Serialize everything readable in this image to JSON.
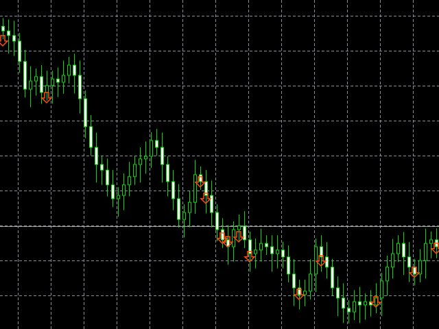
{
  "chart_data": {
    "type": "candlestick",
    "title": "",
    "xlabel": "",
    "ylabel": "",
    "ylim": [
      0,
      100
    ],
    "grid": true,
    "colors": {
      "background": "#000000",
      "grid": "#8a8f99",
      "wick": "#00e000",
      "bull_body": "#000000",
      "bear_body": "#ffffff",
      "signal_arrow": "#ff4a10",
      "price_line": "#a0a0a0"
    },
    "first_open": 92,
    "close": [
      90.6,
      89.2,
      87.5,
      81.3,
      72.9,
      75.4,
      76.7,
      71.9,
      74.0,
      76.0,
      75.0,
      77.1,
      80.2,
      77.1,
      70.0,
      61.5,
      55.2,
      50.0,
      48.3,
      43.8,
      39.6,
      40.6,
      43.8,
      46.3,
      50.0,
      51.7,
      52.5,
      57.3,
      55.2,
      50.0,
      44.8,
      39.6,
      33.3,
      35.4,
      38.5,
      46.9,
      44.8,
      40.6,
      35.4,
      30.2,
      27.1,
      25.0,
      30.2,
      31.3,
      27.1,
      22.9,
      24.0,
      26.0,
      25.0,
      22.9,
      24.0,
      21.9,
      16.7,
      12.5,
      10.4,
      11.5,
      16.7,
      25.0,
      21.9,
      18.8,
      12.5,
      9.4,
      6.3,
      5.2,
      8.3,
      7.3,
      8.3,
      7.3,
      9.4,
      14.6,
      18.8,
      22.9,
      26.0,
      21.9,
      18.8,
      16.7,
      20.8,
      26.0,
      27.1,
      25.0
    ],
    "sell_signals": [
      {
        "index": 0,
        "value": 87.1
      },
      {
        "index": 8,
        "value": 69.8
      },
      {
        "index": 36,
        "value": 44.2
      },
      {
        "index": 37,
        "value": 39.2
      },
      {
        "index": 40,
        "value": 27.1
      },
      {
        "index": 41,
        "value": 26.0
      },
      {
        "index": 43,
        "value": 27.5
      },
      {
        "index": 45,
        "value": 21.5
      },
      {
        "index": 54,
        "value": 10.0
      },
      {
        "index": 58,
        "value": 20.2
      },
      {
        "index": 68,
        "value": 7.7
      },
      {
        "index": 75,
        "value": 16.7
      },
      {
        "index": 79,
        "value": 24.0
      }
    ],
    "price_line": 31.25,
    "signal_icon": "down-arrow-icon"
  }
}
